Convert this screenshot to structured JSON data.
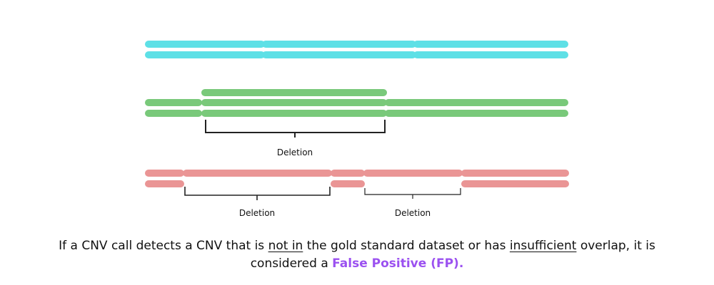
{
  "colors": {
    "reference": "#5ee0e6",
    "truth": "#79c97a",
    "call": "#ea9595",
    "bracket": "#222222",
    "highlight": "#9b51f0"
  },
  "labels": {
    "truth_deletion": "Deletion",
    "call_deletion_1": "Deletion",
    "call_deletion_2": "Deletion"
  },
  "caption": {
    "part1": "If a CNV call detects a CNV that is ",
    "not_in": "not in",
    "part2": " the gold standard dataset or has ",
    "insufficient": "insufficient",
    "part3": " overlap, it is",
    "part4": "considered a ",
    "fp": "False Positive (FP)."
  }
}
